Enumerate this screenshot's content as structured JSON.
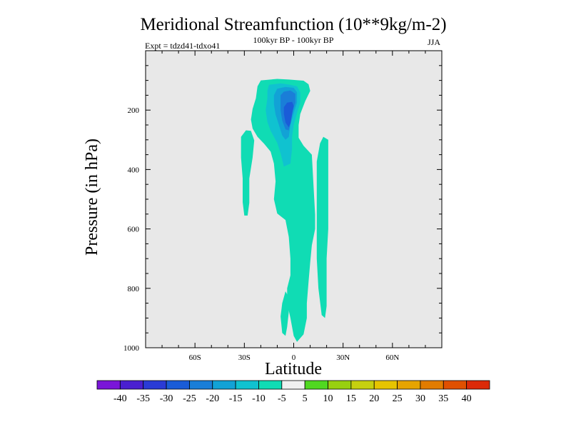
{
  "chart_data": {
    "type": "contour",
    "title": "Meridional Streamfunction (10**9kg/m-2)",
    "subtitle_center": "100kyr BP - 100kyr BP",
    "subtitle_left": "Expt = tdzd41-tdxo41",
    "subtitle_right": "JJA",
    "xlabel": "Latitude",
    "ylabel": "Pressure (in hPa)",
    "xlim": [
      -90,
      90
    ],
    "ylim": [
      1000,
      0
    ],
    "x_ticks": [
      {
        "value": -60,
        "label": "60S"
      },
      {
        "value": -30,
        "label": "30S"
      },
      {
        "value": 0,
        "label": "0"
      },
      {
        "value": 30,
        "label": "30N"
      },
      {
        "value": 60,
        "label": "60N"
      }
    ],
    "y_ticks": [
      {
        "value": 200,
        "label": "200"
      },
      {
        "value": 400,
        "label": "400"
      },
      {
        "value": 600,
        "label": "600"
      },
      {
        "value": 800,
        "label": "800"
      },
      {
        "value": 1000,
        "label": "1000"
      }
    ],
    "background_color": "#e8e8e8",
    "colorbar": {
      "labels": [
        "-40",
        "-35",
        "-30",
        "-25",
        "-20",
        "-15",
        "-10",
        "-5",
        "5",
        "10",
        "15",
        "20",
        "25",
        "30",
        "35",
        "40"
      ],
      "colors": [
        "#7a16d8",
        "#4a1fd0",
        "#2a3bd6",
        "#1a5cd8",
        "#1a7ed8",
        "#12a2d6",
        "#10c2d0",
        "#10dcb4",
        "#f0f0f0",
        "#50d820",
        "#98d010",
        "#c6d010",
        "#e6c400",
        "#e6a400",
        "#e27c00",
        "#e05000",
        "#dc2a08"
      ]
    },
    "regions": [
      {
        "level": "-10 to -5",
        "color": "#10dcb4",
        "points": [
          [
            -20,
            100
          ],
          [
            -10,
            95
          ],
          [
            -3,
            97
          ],
          [
            6,
            101
          ],
          [
            9,
            113
          ],
          [
            10,
            135
          ],
          [
            7,
            170
          ],
          [
            4,
            213
          ],
          [
            3,
            250
          ],
          [
            3,
            293
          ],
          [
            6,
            320
          ],
          [
            11,
            350
          ],
          [
            12,
            452
          ],
          [
            13,
            552
          ],
          [
            13,
            600
          ],
          [
            11,
            655
          ],
          [
            10,
            713
          ],
          [
            9,
            778
          ],
          [
            8,
            850
          ],
          [
            8,
            900
          ],
          [
            6,
            955
          ],
          [
            2,
            980
          ],
          [
            0,
            960
          ],
          [
            -2,
            900
          ],
          [
            -4,
            850
          ],
          [
            -4,
            800
          ],
          [
            -2,
            756
          ],
          [
            -2,
            700
          ],
          [
            -3,
            627
          ],
          [
            -5,
            570
          ],
          [
            -10,
            548
          ],
          [
            -12,
            500
          ],
          [
            -11,
            440
          ],
          [
            -12,
            380
          ],
          [
            -14,
            340
          ],
          [
            -18,
            313
          ],
          [
            -22,
            290
          ],
          [
            -25,
            262
          ],
          [
            -26,
            232
          ],
          [
            -25,
            196
          ],
          [
            -23,
            160
          ],
          [
            -22,
            120
          ]
        ]
      },
      {
        "level": "-15 to -10",
        "color": "#10c2d0",
        "points": [
          [
            -15,
            115
          ],
          [
            -8,
            110
          ],
          [
            -3,
            114
          ],
          [
            2,
            120
          ],
          [
            4,
            140
          ],
          [
            4,
            175
          ],
          [
            2,
            210
          ],
          [
            0,
            250
          ],
          [
            -1,
            290
          ],
          [
            -1,
            330
          ],
          [
            -2,
            380
          ],
          [
            -6,
            390
          ],
          [
            -8,
            345
          ],
          [
            -10,
            310
          ],
          [
            -14,
            270
          ],
          [
            -16,
            240
          ],
          [
            -17,
            200
          ],
          [
            -16,
            160
          ],
          [
            -16,
            135
          ]
        ]
      },
      {
        "level": "-20 to -15",
        "color": "#12a2d6",
        "points": [
          [
            -10,
            128
          ],
          [
            -5,
            122
          ],
          [
            0,
            125
          ],
          [
            2,
            140
          ],
          [
            2,
            175
          ],
          [
            0,
            210
          ],
          [
            -2,
            250
          ],
          [
            -3,
            290
          ],
          [
            -5,
            300
          ],
          [
            -7,
            285
          ],
          [
            -9,
            250
          ],
          [
            -11,
            215
          ],
          [
            -12,
            180
          ],
          [
            -12,
            150
          ]
        ]
      },
      {
        "level": "-25 to -20",
        "color": "#1a7ed8",
        "points": [
          [
            -6,
            138
          ],
          [
            -2,
            134
          ],
          [
            1,
            145
          ],
          [
            1,
            175
          ],
          [
            -1,
            210
          ],
          [
            -2,
            245
          ],
          [
            -3,
            268
          ],
          [
            -5,
            265
          ],
          [
            -7,
            235
          ],
          [
            -8,
            200
          ],
          [
            -8,
            170
          ],
          [
            -8,
            150
          ]
        ]
      },
      {
        "level": "-30 to -25",
        "color": "#1a5cd8",
        "points": [
          [
            -4,
            175
          ],
          [
            -1,
            172
          ],
          [
            0,
            185
          ],
          [
            -1,
            215
          ],
          [
            -2,
            245
          ],
          [
            -3,
            258
          ],
          [
            -5,
            242
          ],
          [
            -6,
            212
          ],
          [
            -6,
            190
          ]
        ]
      },
      {
        "level": "-10 to -5",
        "color": "#10dcb4",
        "points": [
          [
            -32,
            290
          ],
          [
            -29,
            268
          ],
          [
            -26,
            270
          ],
          [
            -24,
            302
          ],
          [
            -25,
            360
          ],
          [
            -27,
            430
          ],
          [
            -27,
            512
          ],
          [
            -28,
            555
          ],
          [
            -30,
            555
          ],
          [
            -31,
            510
          ],
          [
            -31,
            430
          ],
          [
            -32,
            360
          ]
        ]
      },
      {
        "level": "-10 to -5",
        "color": "#10dcb4",
        "points": [
          [
            14,
            373
          ],
          [
            16,
            312
          ],
          [
            18,
            290
          ],
          [
            21,
            300
          ],
          [
            21,
            400
          ],
          [
            21,
            500
          ],
          [
            21,
            600
          ],
          [
            20,
            700
          ],
          [
            20,
            800
          ],
          [
            20,
            860
          ],
          [
            19,
            900
          ],
          [
            17,
            890
          ],
          [
            16,
            845
          ],
          [
            15,
            800
          ],
          [
            14,
            700
          ],
          [
            14,
            600
          ],
          [
            14,
            500
          ]
        ]
      },
      {
        "level": "-10 to -5",
        "color": "#10dcb4",
        "points": [
          [
            -8,
            895
          ],
          [
            -7,
            850
          ],
          [
            -5,
            810
          ],
          [
            -3,
            830
          ],
          [
            -3,
            880
          ],
          [
            -4,
            930
          ],
          [
            -5,
            960
          ],
          [
            -7,
            950
          ]
        ]
      }
    ]
  }
}
